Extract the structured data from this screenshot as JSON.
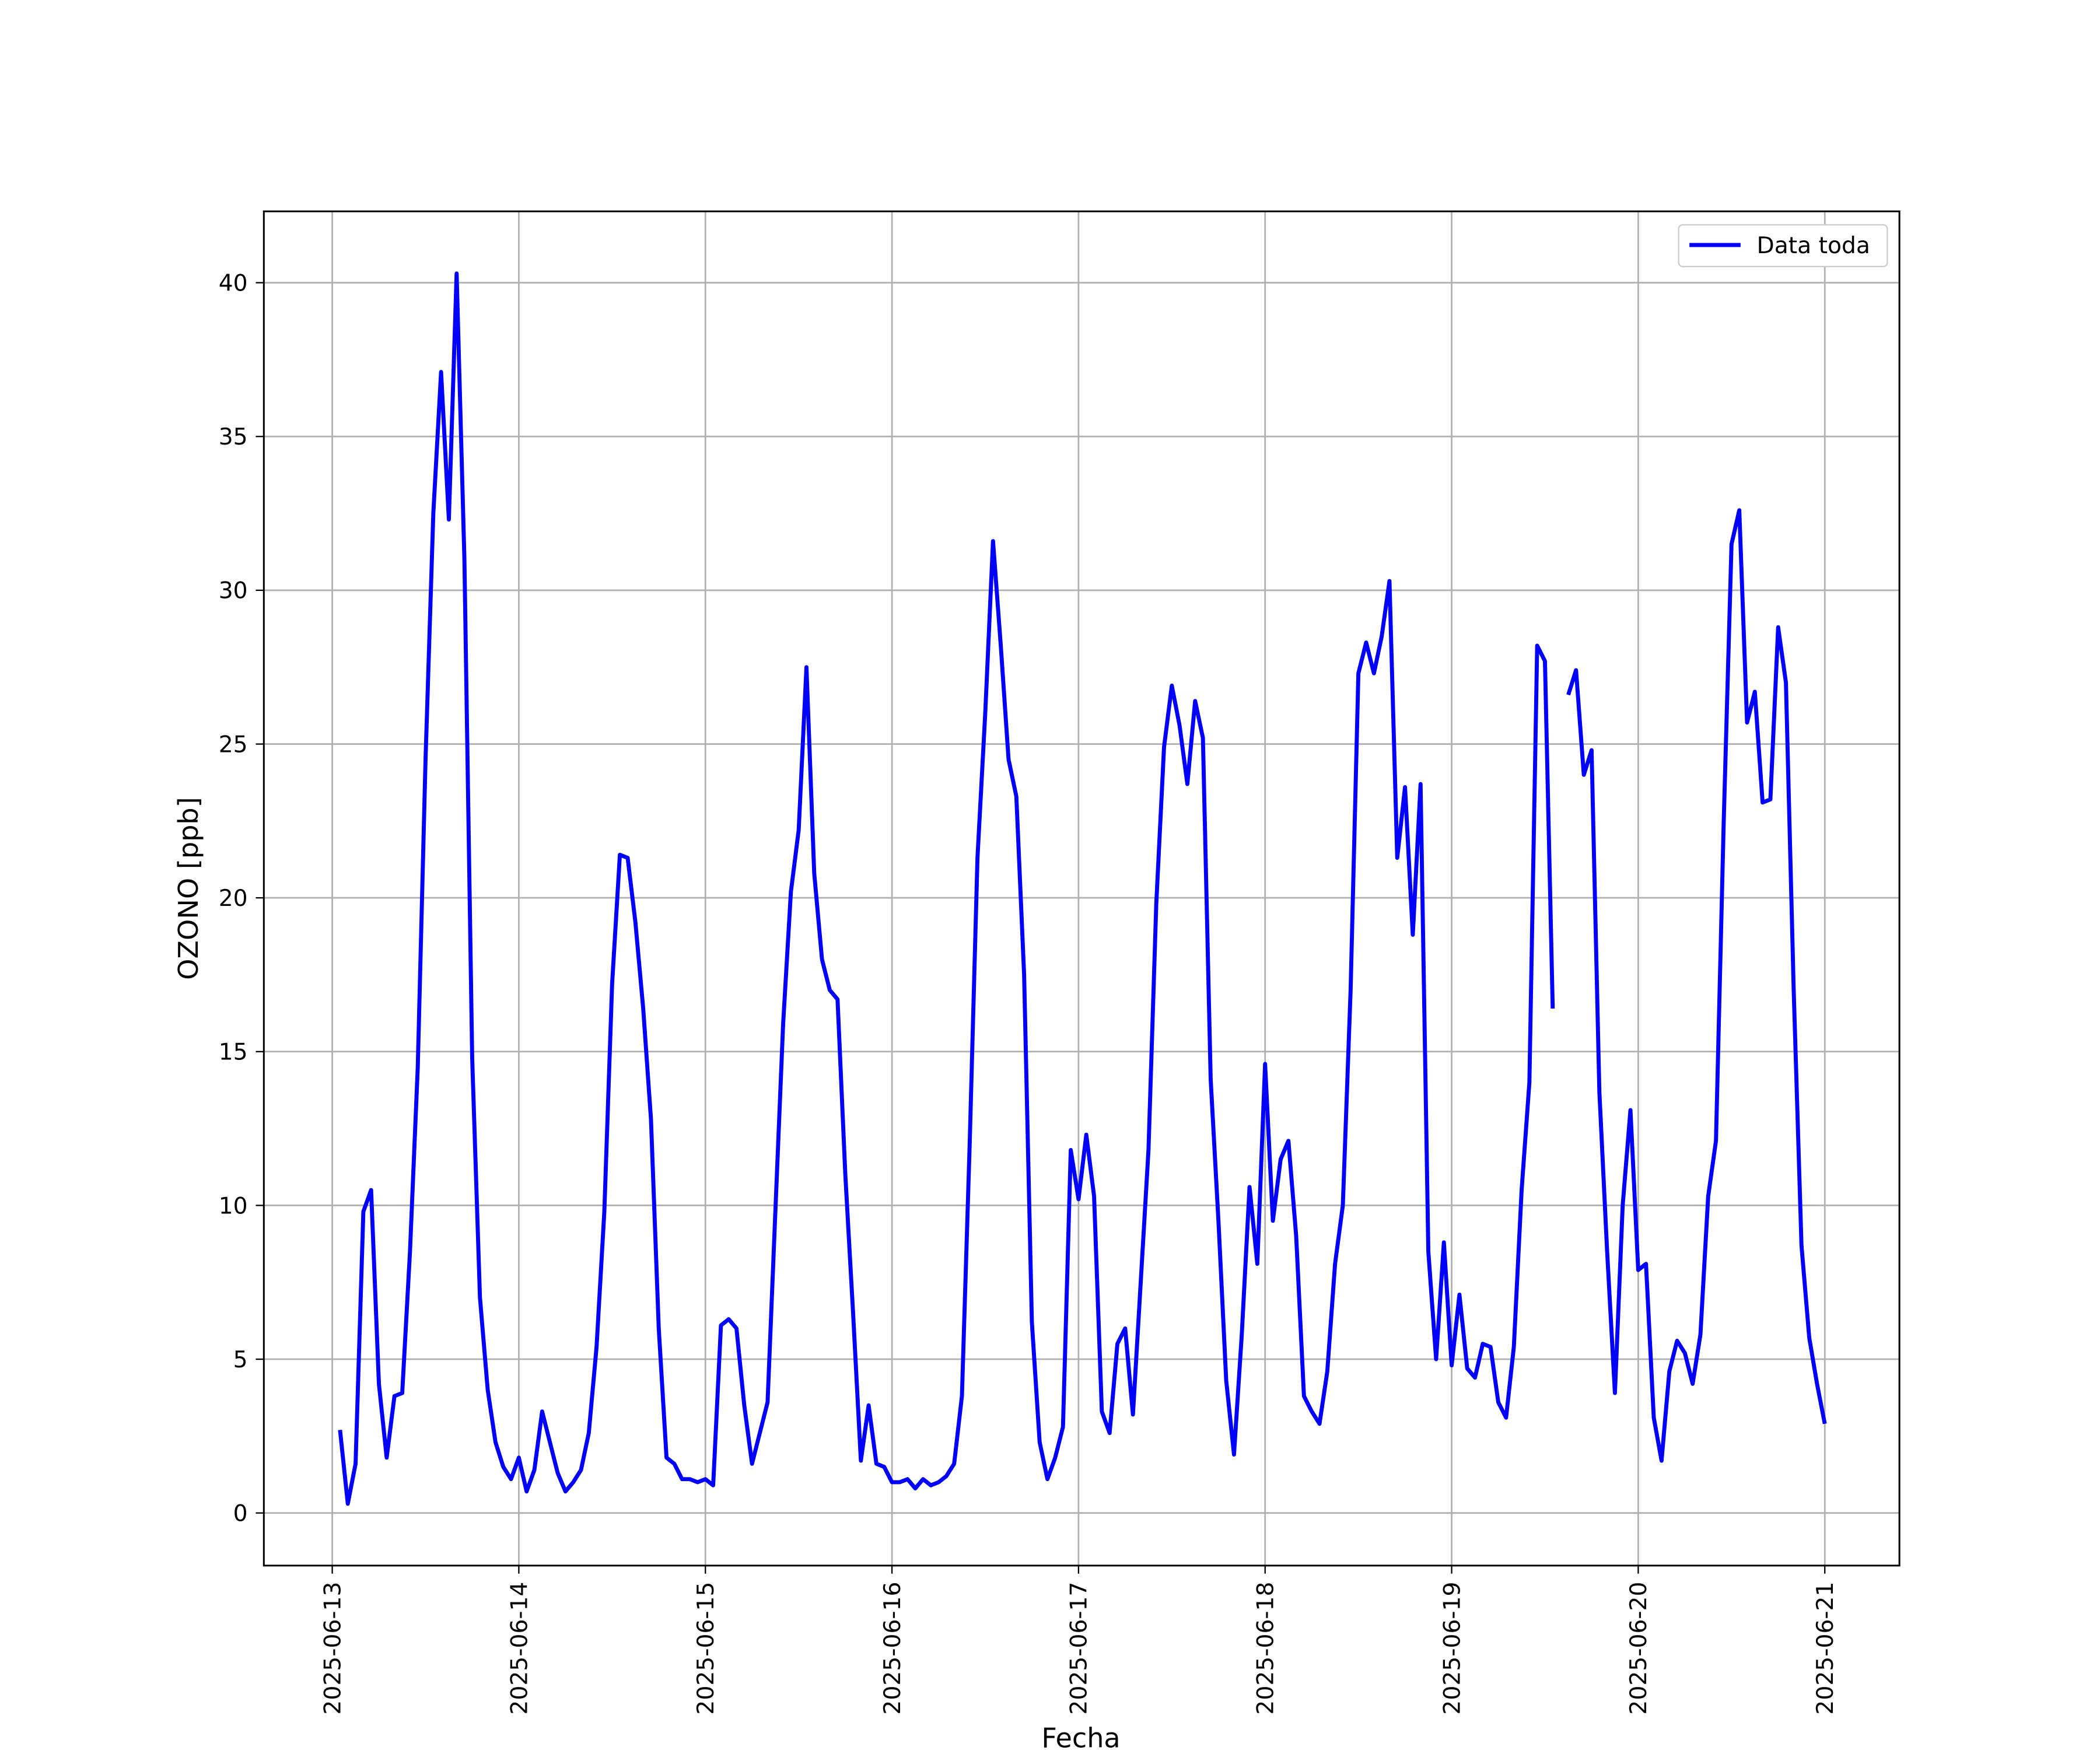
{
  "chart_data": {
    "type": "line",
    "x_label": "Fecha",
    "y_label": "OZONO [ppb]",
    "x": [
      1,
      2,
      3,
      4,
      5,
      6,
      7,
      8,
      9,
      10,
      11,
      12,
      13,
      14,
      15,
      16,
      17,
      18,
      19,
      20,
      21,
      22,
      23,
      24,
      25,
      26,
      27,
      28,
      29,
      30,
      31,
      32,
      33,
      34,
      35,
      36,
      37,
      38,
      39,
      40,
      41,
      42,
      43,
      44,
      45,
      46,
      47,
      48,
      49,
      50,
      51,
      52,
      53,
      54,
      55,
      56,
      57,
      58,
      59,
      60,
      61,
      62,
      63,
      64,
      65,
      66,
      67,
      68,
      69,
      70,
      71,
      72,
      73,
      74,
      75,
      76,
      77,
      78,
      79,
      80,
      81,
      82,
      83,
      84,
      85,
      86,
      87,
      88,
      89,
      90,
      91,
      92,
      93,
      94,
      95,
      96,
      97,
      98,
      99,
      100,
      101,
      102,
      103,
      104,
      105,
      106,
      107,
      108,
      109,
      110,
      111,
      112,
      113,
      114,
      115,
      116,
      117,
      118,
      119,
      120,
      121,
      122,
      123,
      124,
      125,
      126,
      127,
      128,
      129,
      130,
      131,
      132,
      133,
      134,
      135,
      136,
      137,
      138,
      139,
      140,
      141,
      142,
      143,
      144,
      145,
      146,
      147,
      148,
      149,
      150,
      151,
      152,
      153,
      154,
      155,
      156,
      157,
      158,
      159,
      160,
      161,
      162,
      163,
      164,
      165,
      166,
      167,
      168,
      169,
      170,
      171,
      172,
      173,
      174,
      175,
      176,
      177,
      178,
      179,
      180,
      181,
      182,
      183,
      184,
      185,
      186,
      187,
      188,
      189,
      190,
      191,
      192
    ],
    "series": [
      {
        "name": "Data toda",
        "color": "#0000ff",
        "values": [
          2.7,
          0.3,
          1.6,
          9.8,
          10.5,
          4.2,
          1.8,
          3.8,
          3.9,
          8.5,
          14.5,
          24.5,
          32.5,
          37.1,
          32.3,
          40.3,
          31,
          14.8,
          7,
          4,
          2.3,
          1.5,
          1.1,
          1.8,
          0.7,
          1.4,
          3.3,
          2.3,
          1.3,
          0.7,
          1.0,
          1.4,
          2.6,
          5.4,
          9.8,
          17.2,
          21.4,
          21.3,
          19.2,
          16.4,
          12.8,
          6,
          1.8,
          1.6,
          1.1,
          1.1,
          1.0,
          1.1,
          0.9,
          6.1,
          6.3,
          6.0,
          3.5,
          1.6,
          2.6,
          3.6,
          9.8,
          15.9,
          20.2,
          22.2,
          27.5,
          20.8,
          18,
          17,
          16.7,
          11,
          6.5,
          1.7,
          3.5,
          1.6,
          1.5,
          1.0,
          1.0,
          1.1,
          0.8,
          1.1,
          0.9,
          1.0,
          1.2,
          1.6,
          3.8,
          12,
          21.3,
          26,
          31.6,
          28.2,
          24.5,
          23.3,
          17.5,
          6.2,
          2.3,
          1.1,
          1.8,
          2.8,
          11.8,
          10.2,
          12.3,
          10.3,
          3.3,
          2.6,
          5.5,
          6.0,
          3.2,
          7.5,
          11.8,
          19.8,
          24.9,
          26.9,
          25.6,
          23.7,
          26.4,
          25.2,
          14.1,
          9.5,
          4.3,
          1.9,
          5.8,
          10.6,
          8.1,
          14.6,
          9.5,
          11.5,
          12.1,
          9,
          3.8,
          3.3,
          2.9,
          4.6,
          8.1,
          10,
          17,
          27.3,
          28.3,
          27.3,
          28.5,
          30.3,
          21.3,
          23.6,
          18.8,
          23.7,
          8.5,
          5.0,
          8.8,
          4.8,
          7.1,
          4.7,
          4.4,
          5.5,
          5.4,
          3.6,
          3.1,
          5.4,
          10.5,
          14,
          28.2,
          27.7,
          16.4,
          null,
          26.6,
          27.4,
          24.0,
          24.8,
          13.7,
          8.5,
          3.9,
          10,
          13.1,
          7.9,
          8.1,
          3.1,
          1.7,
          4.6,
          5.6,
          5.2,
          4.2,
          5.8,
          10.3,
          12.1,
          22.5,
          31.5,
          32.6,
          25.7,
          26.7,
          23.1,
          23.2,
          28.8,
          27,
          17,
          8.7,
          5.7,
          4.2,
          2.9
        ]
      }
    ],
    "xlim": [
      -8.8,
      201.6
    ],
    "xticks": [
      {
        "value": 0,
        "label": "2025-06-13"
      },
      {
        "value": 24,
        "label": "2025-06-14"
      },
      {
        "value": 48,
        "label": "2025-06-15"
      },
      {
        "value": 72,
        "label": "2025-06-16"
      },
      {
        "value": 96,
        "label": "2025-06-17"
      },
      {
        "value": 120,
        "label": "2025-06-18"
      },
      {
        "value": 144,
        "label": "2025-06-19"
      },
      {
        "value": 168,
        "label": "2025-06-20"
      },
      {
        "value": 192,
        "label": "2025-06-21"
      }
    ],
    "ylim": [
      -1.71,
      42.32
    ],
    "yticks": [
      0,
      5,
      10,
      15,
      20,
      25,
      30,
      35,
      40
    ],
    "grid": true,
    "legend": "upper right"
  }
}
